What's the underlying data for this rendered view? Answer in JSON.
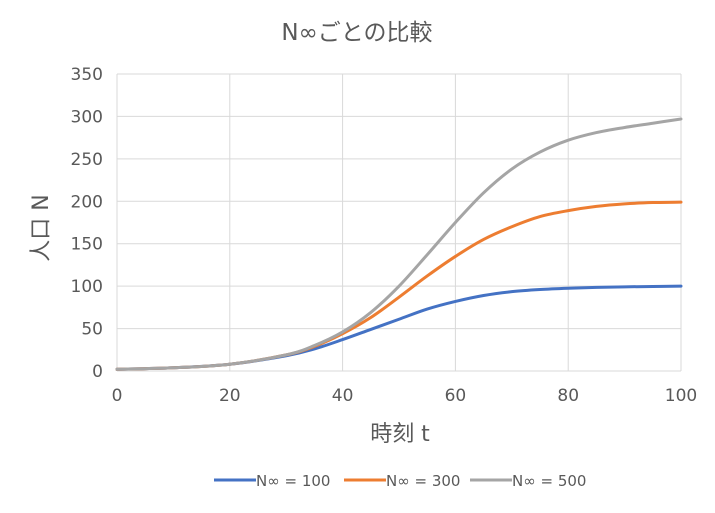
{
  "chart_data": {
    "type": "line",
    "title": "N∞ごとの比較",
    "xlabel": "時刻 t",
    "ylabel": "人口 N",
    "xlim": [
      0,
      100
    ],
    "ylim": [
      0,
      350
    ],
    "xticks": [
      0,
      20,
      40,
      60,
      80,
      100
    ],
    "yticks": [
      0,
      50,
      100,
      150,
      200,
      250,
      300,
      350
    ],
    "grid": true,
    "legend_position": "bottom",
    "x": [
      0,
      10,
      20,
      30,
      35,
      40,
      45,
      50,
      55,
      60,
      65,
      70,
      75,
      80,
      85,
      90,
      95,
      100
    ],
    "series": [
      {
        "name": "N∞ = 100",
        "color": "#4472c4",
        "values": [
          2,
          3.8,
          8,
          18,
          26,
          37,
          49,
          61,
          73,
          82,
          89,
          93.5,
          96,
          97.5,
          98.5,
          99.2,
          99.6,
          100
        ]
      },
      {
        "name": "N∞ = 300",
        "color": "#ed7d31",
        "values": [
          2,
          3.8,
          8,
          19,
          29,
          44,
          63,
          87,
          112,
          135,
          155,
          170,
          182,
          189,
          194,
          197,
          198.5,
          199
        ]
      },
      {
        "name": "N∞ = 500",
        "color": "#a5a5a5",
        "values": [
          2,
          3.8,
          8,
          19,
          30,
          46,
          69,
          100,
          137,
          175,
          210,
          238,
          258,
          272,
          281,
          287,
          292,
          297
        ]
      }
    ]
  }
}
